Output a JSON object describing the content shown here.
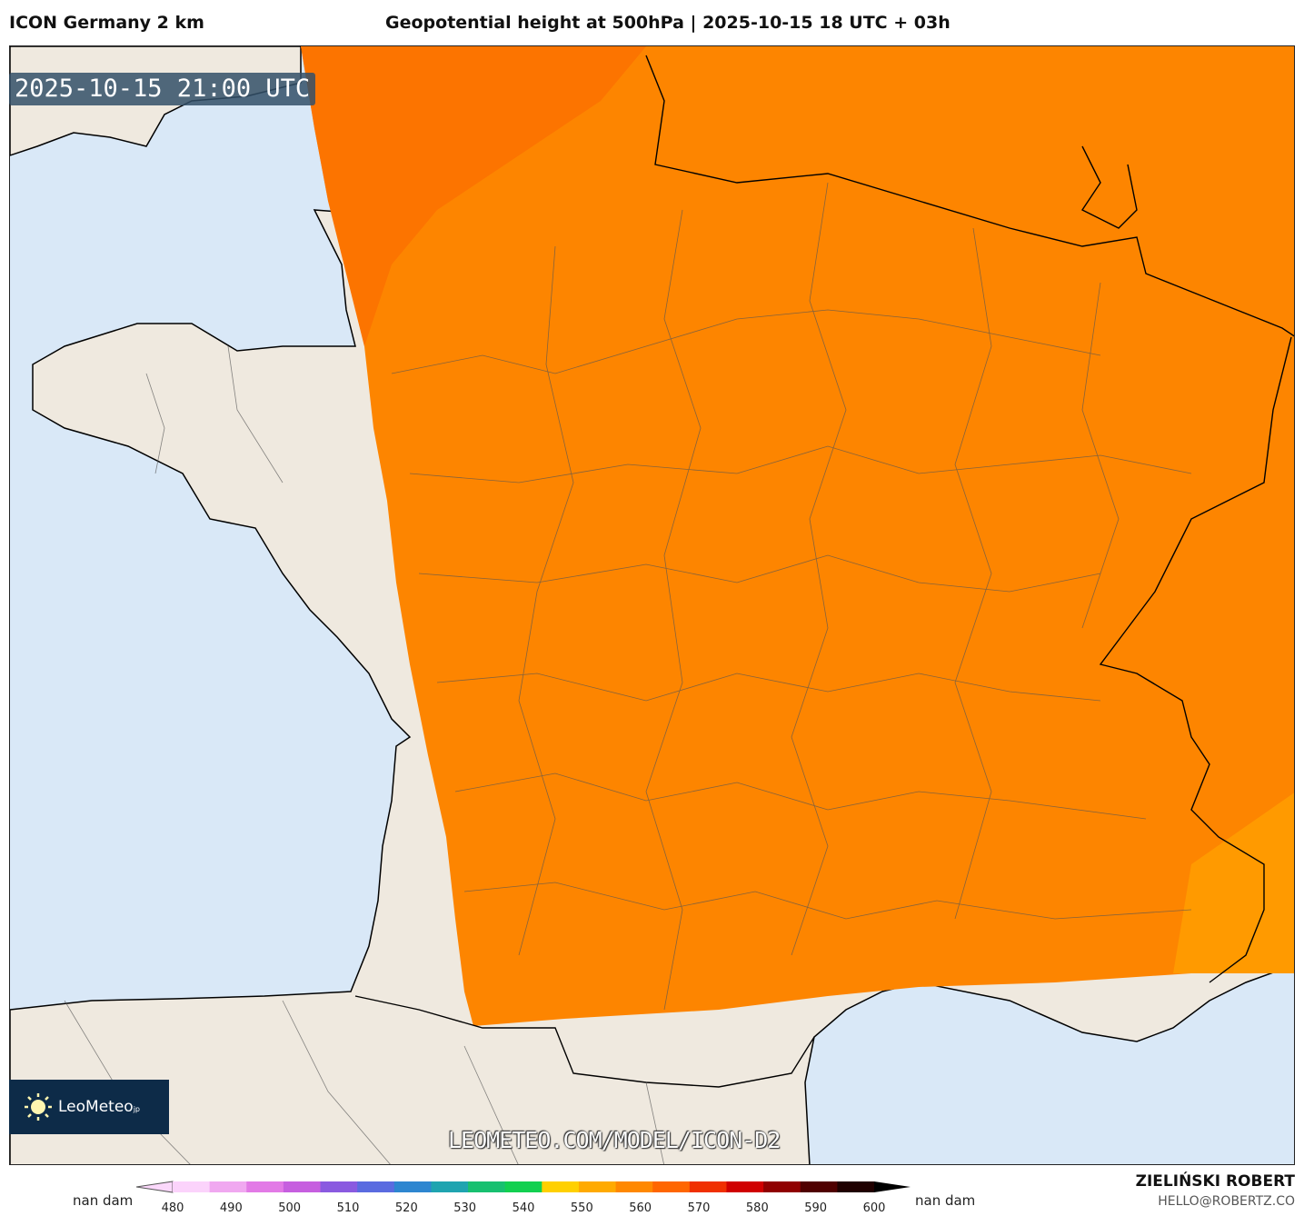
{
  "header": {
    "model": "ICON Germany 2 km",
    "title": "Geopotential height at 500hPa | 2025-10-15 18 UTC + 03h"
  },
  "map": {
    "valid_time": "2025-10-15 21:00 UTC",
    "watermark_url": "LEOMETEO.COM/MODEL/ICON-D2",
    "logo_text": "LeoMeteo",
    "logo_suffix": "jp",
    "colors": {
      "ocean": "#d9e8f7",
      "land": "#efe9df",
      "field_dark": "#fb7400",
      "field_mid": "#fd8a00",
      "field_light": "#ff9e00"
    }
  },
  "colorbar": {
    "left_label": "nan dam",
    "right_label": "nan dam",
    "ticks": [
      "480",
      "490",
      "500",
      "510",
      "520",
      "530",
      "540",
      "550",
      "560",
      "570",
      "580",
      "590",
      "600"
    ],
    "colors": [
      "#fbd3fb",
      "#f0a8f0",
      "#e27ae6",
      "#c65fdf",
      "#8a5ae0",
      "#5a6be0",
      "#2e86d0",
      "#1fa4b0",
      "#18c070",
      "#12d050",
      "#ffd000",
      "#ffaa00",
      "#ff8800",
      "#ff6600",
      "#f03000",
      "#d00000",
      "#900000",
      "#500000",
      "#200000"
    ]
  },
  "footer": {
    "author": "ZIELIŃSKI ROBERT",
    "email": "HELLO@ROBERTZ.CO"
  }
}
